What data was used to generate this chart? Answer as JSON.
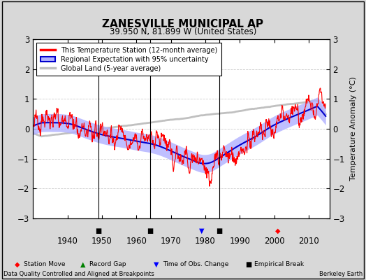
{
  "title": "ZANESVILLE MUNICIPAL AP",
  "subtitle": "39.950 N, 81.899 W (United States)",
  "ylabel": "Temperature Anomaly (°C)",
  "footer_left": "Data Quality Controlled and Aligned at Breakpoints",
  "footer_right": "Berkeley Earth",
  "xlim": [
    1930,
    2016
  ],
  "ylim": [
    -3,
    3
  ],
  "yticks": [
    -3,
    -2,
    -1,
    0,
    1,
    2,
    3
  ],
  "xticks": [
    1940,
    1950,
    1960,
    1970,
    1980,
    1990,
    2000,
    2010
  ],
  "bg_color": "#d8d8d8",
  "plot_bg_color": "#ffffff",
  "station_color": "#ff0000",
  "regional_color": "#0000cc",
  "regional_fill_color": "#b0b0ff",
  "global_color": "#c0c0c0",
  "legend_entries": [
    "This Temperature Station (12-month average)",
    "Regional Expectation with 95% uncertainty",
    "Global Land (5-year average)"
  ],
  "marker_events": {
    "station_move": [
      2001
    ],
    "record_gap": [],
    "time_obs_change": [
      1979
    ],
    "empirical_break": [
      1949,
      1964,
      1984
    ]
  },
  "seed": 123
}
